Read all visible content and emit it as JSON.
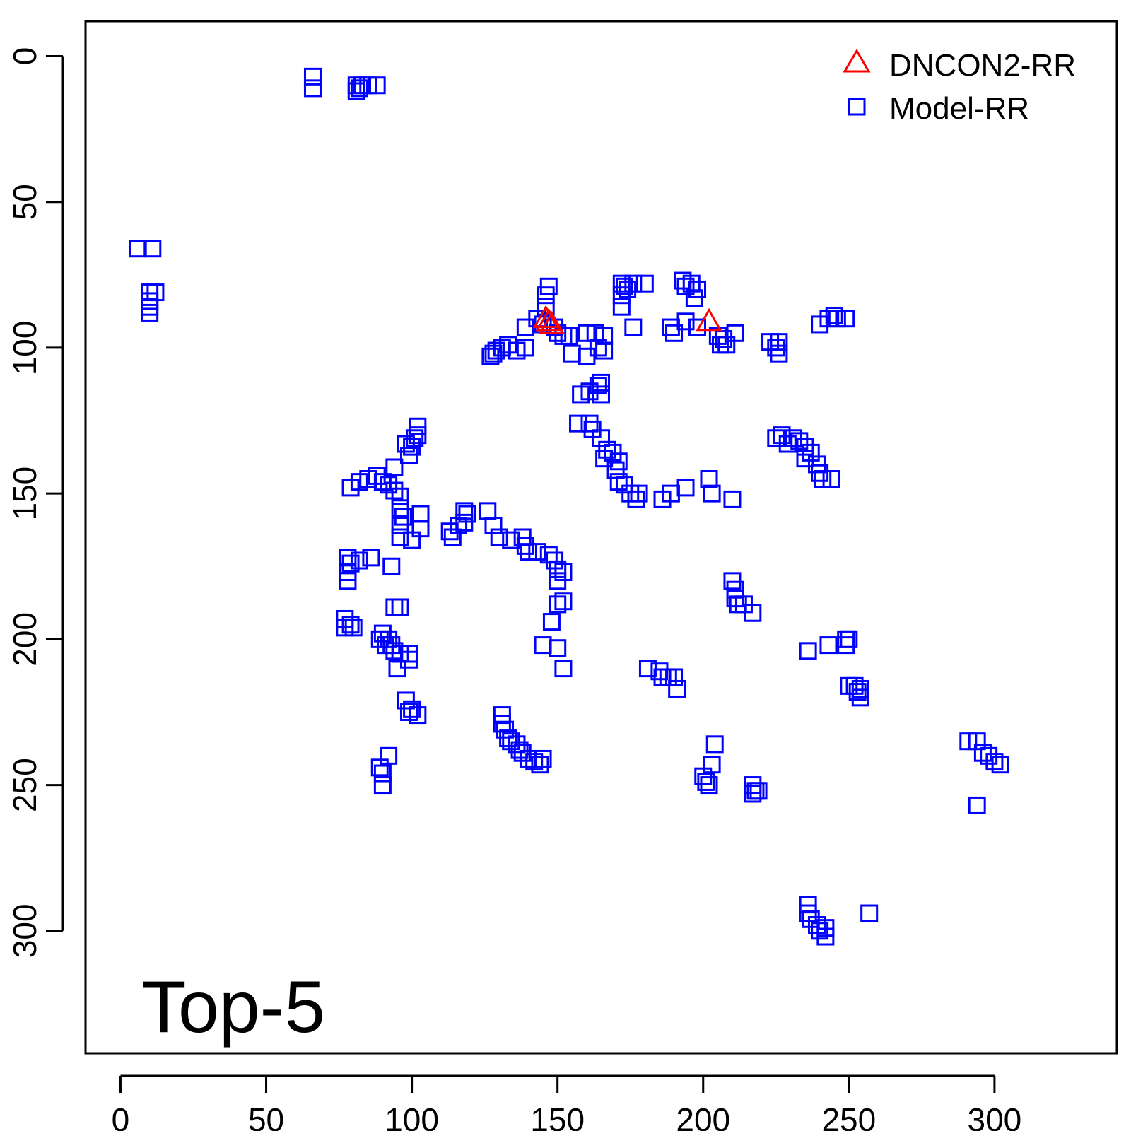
{
  "chart_data": {
    "type": "scatter",
    "title": "",
    "xlabel": "",
    "ylabel": "",
    "panel_label": "Top-5",
    "xlim": [
      -12,
      342
    ],
    "ylim": [
      342,
      -12
    ],
    "y_axis_reversed": true,
    "x_ticks": [
      "0",
      "50",
      "100",
      "150",
      "200",
      "250",
      "300"
    ],
    "y_ticks": [
      "0",
      "50",
      "100",
      "150",
      "200",
      "250",
      "300"
    ],
    "grid": false,
    "legend": {
      "placement": "top-right",
      "entries": [
        {
          "label": "DNCON2-RR",
          "marker": "triangle",
          "color": "#ff0000"
        },
        {
          "label": "Model-RR",
          "marker": "square",
          "color": "#0000ff"
        }
      ]
    },
    "series": [
      {
        "name": "DNCON2-RR",
        "marker": "triangle",
        "color": "#ff0000",
        "points": [
          [
            146,
            90
          ],
          [
            147,
            91
          ],
          [
            148,
            92
          ],
          [
            202,
            91
          ]
        ]
      },
      {
        "name": "Model-RR",
        "marker": "square",
        "color": "#0000ff",
        "points": [
          [
            66,
            7
          ],
          [
            66,
            11
          ],
          [
            81,
            10
          ],
          [
            81,
            12
          ],
          [
            82,
            11
          ],
          [
            83,
            10
          ],
          [
            85,
            10
          ],
          [
            88,
            10
          ],
          [
            6,
            66
          ],
          [
            11,
            66
          ],
          [
            10,
            81
          ],
          [
            10,
            84
          ],
          [
            10,
            86
          ],
          [
            10,
            88
          ],
          [
            12,
            81
          ],
          [
            147,
            79
          ],
          [
            146,
            82
          ],
          [
            146,
            86
          ],
          [
            143,
            90
          ],
          [
            145,
            92
          ],
          [
            149,
            93
          ],
          [
            150,
            95
          ],
          [
            152,
            96
          ],
          [
            154,
            96
          ],
          [
            139,
            93
          ],
          [
            139,
            100
          ],
          [
            136,
            101
          ],
          [
            133,
            99
          ],
          [
            131,
            100
          ],
          [
            129,
            101
          ],
          [
            128,
            102
          ],
          [
            127,
            103
          ],
          [
            160,
            95
          ],
          [
            163,
            95
          ],
          [
            166,
            96
          ],
          [
            155,
            102
          ],
          [
            160,
            103
          ],
          [
            164,
            100
          ],
          [
            166,
            101
          ],
          [
            172,
            78
          ],
          [
            173,
            79
          ],
          [
            174,
            80
          ],
          [
            176,
            78
          ],
          [
            180,
            78
          ],
          [
            172,
            82
          ],
          [
            172,
            86
          ],
          [
            176,
            93
          ],
          [
            193,
            77
          ],
          [
            194,
            79
          ],
          [
            196,
            78
          ],
          [
            198,
            80
          ],
          [
            197,
            83
          ],
          [
            189,
            93
          ],
          [
            190,
            95
          ],
          [
            194,
            91
          ],
          [
            198,
            93
          ],
          [
            205,
            96
          ],
          [
            207,
            97
          ],
          [
            206,
            99
          ],
          [
            208,
            99
          ],
          [
            211,
            95
          ],
          [
            223,
            98
          ],
          [
            226,
            98
          ],
          [
            225,
            100
          ],
          [
            226,
            102
          ],
          [
            240,
            92
          ],
          [
            243,
            90
          ],
          [
            245,
            89
          ],
          [
            246,
            90
          ],
          [
            249,
            90
          ],
          [
            158,
            116
          ],
          [
            161,
            115
          ],
          [
            164,
            113
          ],
          [
            165,
            112
          ],
          [
            165,
            116
          ],
          [
            161,
            126
          ],
          [
            157,
            126
          ],
          [
            162,
            128
          ],
          [
            165,
            131
          ],
          [
            167,
            135
          ],
          [
            166,
            138
          ],
          [
            169,
            136
          ],
          [
            171,
            139
          ],
          [
            170,
            142
          ],
          [
            171,
            146
          ],
          [
            173,
            147
          ],
          [
            175,
            150
          ],
          [
            177,
            152
          ],
          [
            178,
            150
          ],
          [
            186,
            152
          ],
          [
            189,
            150
          ],
          [
            194,
            148
          ],
          [
            202,
            145
          ],
          [
            203,
            150
          ],
          [
            210,
            152
          ],
          [
            225,
            131
          ],
          [
            227,
            130
          ],
          [
            229,
            133
          ],
          [
            231,
            131
          ],
          [
            233,
            132
          ],
          [
            235,
            134
          ],
          [
            237,
            136
          ],
          [
            239,
            140
          ],
          [
            240,
            143
          ],
          [
            244,
            145
          ],
          [
            241,
            145
          ],
          [
            235,
            138
          ],
          [
            102,
            127
          ],
          [
            102,
            130
          ],
          [
            101,
            131
          ],
          [
            100,
            134
          ],
          [
            99,
            137
          ],
          [
            98,
            133
          ],
          [
            79,
            148
          ],
          [
            82,
            146
          ],
          [
            85,
            145
          ],
          [
            88,
            144
          ],
          [
            90,
            146
          ],
          [
            92,
            147
          ],
          [
            94,
            141
          ],
          [
            94,
            149
          ],
          [
            96,
            151
          ],
          [
            96,
            155
          ],
          [
            97,
            158
          ],
          [
            96,
            161
          ],
          [
            96,
            165
          ],
          [
            100,
            166
          ],
          [
            103,
            157
          ],
          [
            103,
            162
          ],
          [
            113,
            163
          ],
          [
            114,
            165
          ],
          [
            116,
            161
          ],
          [
            118,
            160
          ],
          [
            118,
            156
          ],
          [
            119,
            157
          ],
          [
            126,
            156
          ],
          [
            128,
            161
          ],
          [
            130,
            165
          ],
          [
            134,
            166
          ],
          [
            138,
            165
          ],
          [
            139,
            168
          ],
          [
            140,
            170
          ],
          [
            143,
            170
          ],
          [
            147,
            171
          ],
          [
            149,
            173
          ],
          [
            150,
            176
          ],
          [
            152,
            177
          ],
          [
            150,
            180
          ],
          [
            78,
            172
          ],
          [
            79,
            174
          ],
          [
            78,
            177
          ],
          [
            78,
            180
          ],
          [
            82,
            173
          ],
          [
            86,
            172
          ],
          [
            93,
            175
          ],
          [
            77,
            193
          ],
          [
            79,
            195
          ],
          [
            80,
            196
          ],
          [
            77,
            196
          ],
          [
            90,
            198
          ],
          [
            89,
            200
          ],
          [
            92,
            200
          ],
          [
            91,
            202
          ],
          [
            93,
            202
          ],
          [
            94,
            204
          ],
          [
            96,
            205
          ],
          [
            99,
            207
          ],
          [
            99,
            205
          ],
          [
            95,
            210
          ],
          [
            94,
            189
          ],
          [
            96,
            189
          ],
          [
            98,
            221
          ],
          [
            99,
            225
          ],
          [
            102,
            226
          ],
          [
            100,
            224
          ],
          [
            92,
            240
          ],
          [
            89,
            244
          ],
          [
            90,
            246
          ],
          [
            90,
            250
          ],
          [
            148,
            194
          ],
          [
            150,
            188
          ],
          [
            152,
            187
          ],
          [
            145,
            202
          ],
          [
            150,
            203
          ],
          [
            152,
            210
          ],
          [
            131,
            226
          ],
          [
            131,
            229
          ],
          [
            132,
            231
          ],
          [
            133,
            234
          ],
          [
            134,
            235
          ],
          [
            136,
            236
          ],
          [
            137,
            238
          ],
          [
            138,
            239
          ],
          [
            140,
            241
          ],
          [
            142,
            242
          ],
          [
            144,
            243
          ],
          [
            145,
            241
          ],
          [
            181,
            210
          ],
          [
            185,
            211
          ],
          [
            186,
            213
          ],
          [
            188,
            213
          ],
          [
            190,
            213
          ],
          [
            191,
            217
          ],
          [
            210,
            180
          ],
          [
            211,
            183
          ],
          [
            211,
            186
          ],
          [
            212,
            188
          ],
          [
            214,
            188
          ],
          [
            217,
            191
          ],
          [
            249,
            200
          ],
          [
            250,
            200
          ],
          [
            249,
            202
          ],
          [
            236,
            204
          ],
          [
            243,
            202
          ],
          [
            250,
            216
          ],
          [
            252,
            216
          ],
          [
            253,
            218
          ],
          [
            254,
            217
          ],
          [
            254,
            220
          ],
          [
            200,
            247
          ],
          [
            201,
            249
          ],
          [
            202,
            250
          ],
          [
            203,
            243
          ],
          [
            204,
            236
          ],
          [
            217,
            250
          ],
          [
            217,
            253
          ],
          [
            218,
            252
          ],
          [
            219,
            252
          ],
          [
            291,
            235
          ],
          [
            294,
            235
          ],
          [
            296,
            239
          ],
          [
            298,
            240
          ],
          [
            300,
            242
          ],
          [
            302,
            243
          ],
          [
            294,
            257
          ],
          [
            236,
            291
          ],
          [
            236,
            294
          ],
          [
            237,
            296
          ],
          [
            239,
            298
          ],
          [
            240,
            300
          ],
          [
            242,
            299
          ],
          [
            242,
            302
          ],
          [
            257,
            294
          ]
        ]
      }
    ]
  }
}
